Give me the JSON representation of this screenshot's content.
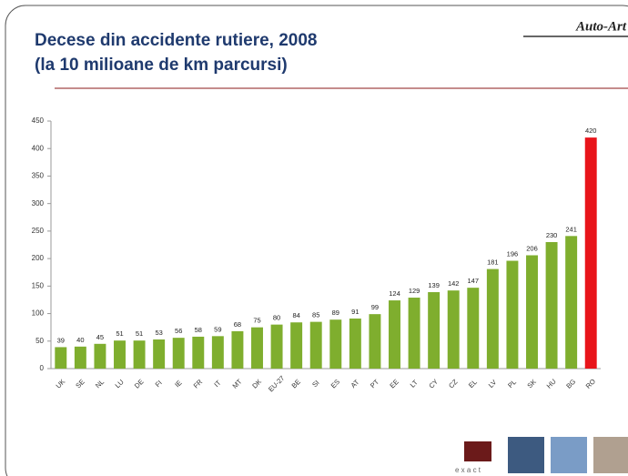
{
  "chart_data": {
    "type": "bar",
    "title": "Decese din accidente rutiere, 2008",
    "subtitle": "(la 10 milioane de km parcursi)",
    "logo": "Auto-Art",
    "footer_text": "e x a c t",
    "categories": [
      "UK",
      "SE",
      "NL",
      "LU",
      "DE",
      "FI",
      "IE",
      "FR",
      "IT",
      "MT",
      "DK",
      "EU-27",
      "BE",
      "SI",
      "ES",
      "AT",
      "PT",
      "EE",
      "LT",
      "CY",
      "CZ",
      "EL",
      "LV",
      "PL",
      "SK",
      "HU",
      "BG",
      "RO"
    ],
    "values": [
      39,
      40,
      45,
      51,
      51,
      53,
      56,
      58,
      59,
      68,
      75,
      80,
      84,
      85,
      89,
      91,
      99,
      124,
      129,
      139,
      142,
      147,
      181,
      196,
      206,
      230,
      241,
      420
    ],
    "colors": [
      "#7fae2e",
      "#7fae2e",
      "#7fae2e",
      "#7fae2e",
      "#7fae2e",
      "#7fae2e",
      "#7fae2e",
      "#7fae2e",
      "#7fae2e",
      "#7fae2e",
      "#7fae2e",
      "#7fae2e",
      "#7fae2e",
      "#7fae2e",
      "#7fae2e",
      "#7fae2e",
      "#7fae2e",
      "#7fae2e",
      "#7fae2e",
      "#7fae2e",
      "#7fae2e",
      "#7fae2e",
      "#7fae2e",
      "#7fae2e",
      "#7fae2e",
      "#7fae2e",
      "#7fae2e",
      "#e8141a"
    ],
    "ylim": [
      0,
      450
    ],
    "yticks": [
      0,
      50,
      100,
      150,
      200,
      250,
      300,
      350,
      400,
      450
    ],
    "grid": false
  }
}
